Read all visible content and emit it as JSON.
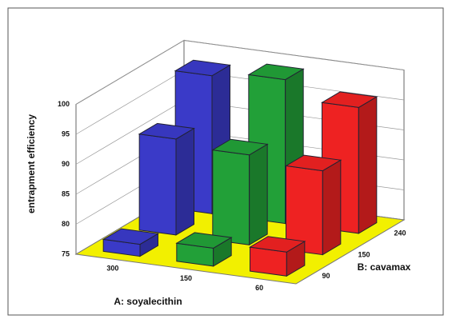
{
  "chart_data": {
    "type": "bar3d",
    "zlabel": "entrapment efficiency",
    "xlabel": "A: soyalecithin",
    "ylabel": "B: cavamax",
    "x_categories": [
      "300",
      "150",
      "60"
    ],
    "y_categories": [
      "90",
      "150",
      "240"
    ],
    "colors": [
      "#3a3ac8",
      "#22a038",
      "#ee2222"
    ],
    "values": [
      [
        77,
        91,
        98
      ],
      [
        78,
        90,
        99
      ],
      [
        79,
        89,
        96
      ]
    ],
    "zlim": [
      75,
      100
    ],
    "zticks": [
      75,
      80,
      85,
      90,
      95,
      100
    ],
    "floor_color": "#f2f000",
    "grid": true
  }
}
